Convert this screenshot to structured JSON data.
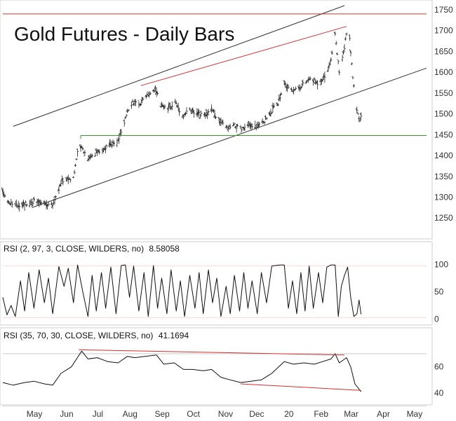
{
  "chart_data": [
    {
      "type": "ohlc",
      "panel": "price",
      "title": "Gold Futures - Daily Bars",
      "ylim": [
        1205,
        1760
      ],
      "yticks": [
        1250,
        1300,
        1350,
        1400,
        1450,
        1500,
        1550,
        1600,
        1650,
        1700,
        1750
      ],
      "xticks": [
        {
          "date": "2019-05-01",
          "label": "May"
        },
        {
          "date": "2019-06-01",
          "label": "Jun"
        },
        {
          "date": "2019-07-01",
          "label": "Jul"
        },
        {
          "date": "2019-08-01",
          "label": "Aug"
        },
        {
          "date": "2019-09-01",
          "label": "Sep"
        },
        {
          "date": "2019-10-01",
          "label": "Oct"
        },
        {
          "date": "2019-11-01",
          "label": "Nov"
        },
        {
          "date": "2019-12-01",
          "label": "Dec"
        },
        {
          "date": "2020-01-01",
          "label": "20"
        },
        {
          "date": "2020-02-01",
          "label": "Feb"
        },
        {
          "date": "2020-03-01",
          "label": "Mar"
        },
        {
          "date": "2020-04-01",
          "label": "Apr"
        },
        {
          "date": "2020-05-01",
          "label": "May"
        }
      ],
      "xlim": [
        "2019-04-10",
        "2020-05-22"
      ],
      "grid": false,
      "closes": [
        {
          "x": "2019-04-10",
          "y": 1312
        },
        {
          "x": "2019-04-16",
          "y": 1288
        },
        {
          "x": "2019-04-22",
          "y": 1280
        },
        {
          "x": "2019-05-01",
          "y": 1285
        },
        {
          "x": "2019-05-10",
          "y": 1290
        },
        {
          "x": "2019-05-20",
          "y": 1283
        },
        {
          "x": "2019-05-28",
          "y": 1282
        },
        {
          "x": "2019-06-03",
          "y": 1320
        },
        {
          "x": "2019-06-06",
          "y": 1340
        },
        {
          "x": "2019-06-12",
          "y": 1345
        },
        {
          "x": "2019-06-17",
          "y": 1348
        },
        {
          "x": "2019-06-21",
          "y": 1405
        },
        {
          "x": "2019-06-25",
          "y": 1420
        },
        {
          "x": "2019-07-01",
          "y": 1395
        },
        {
          "x": "2019-07-08",
          "y": 1405
        },
        {
          "x": "2019-07-15",
          "y": 1415
        },
        {
          "x": "2019-07-22",
          "y": 1425
        },
        {
          "x": "2019-07-29",
          "y": 1430
        },
        {
          "x": "2019-08-05",
          "y": 1475
        },
        {
          "x": "2019-08-08",
          "y": 1510
        },
        {
          "x": "2019-08-13",
          "y": 1530
        },
        {
          "x": "2019-08-19",
          "y": 1520
        },
        {
          "x": "2019-08-26",
          "y": 1545
        },
        {
          "x": "2019-09-04",
          "y": 1560
        },
        {
          "x": "2019-09-09",
          "y": 1520
        },
        {
          "x": "2019-09-16",
          "y": 1510
        },
        {
          "x": "2019-09-23",
          "y": 1530
        },
        {
          "x": "2019-09-30",
          "y": 1495
        },
        {
          "x": "2019-10-07",
          "y": 1510
        },
        {
          "x": "2019-10-14",
          "y": 1500
        },
        {
          "x": "2019-10-21",
          "y": 1495
        },
        {
          "x": "2019-10-28",
          "y": 1510
        },
        {
          "x": "2019-11-04",
          "y": 1485
        },
        {
          "x": "2019-11-12",
          "y": 1465
        },
        {
          "x": "2019-11-19",
          "y": 1472
        },
        {
          "x": "2019-11-26",
          "y": 1462
        },
        {
          "x": "2019-12-03",
          "y": 1472
        },
        {
          "x": "2019-12-10",
          "y": 1470
        },
        {
          "x": "2019-12-17",
          "y": 1480
        },
        {
          "x": "2019-12-24",
          "y": 1505
        },
        {
          "x": "2019-12-31",
          "y": 1525
        },
        {
          "x": "2020-01-06",
          "y": 1575
        },
        {
          "x": "2020-01-10",
          "y": 1560
        },
        {
          "x": "2020-01-17",
          "y": 1560
        },
        {
          "x": "2020-01-24",
          "y": 1570
        },
        {
          "x": "2020-01-31",
          "y": 1585
        },
        {
          "x": "2020-02-07",
          "y": 1575
        },
        {
          "x": "2020-02-14",
          "y": 1590
        },
        {
          "x": "2020-02-20",
          "y": 1625
        },
        {
          "x": "2020-02-24",
          "y": 1690
        },
        {
          "x": "2020-02-28",
          "y": 1600
        },
        {
          "x": "2020-03-03",
          "y": 1645
        },
        {
          "x": "2020-03-06",
          "y": 1690
        },
        {
          "x": "2020-03-09",
          "y": 1680
        },
        {
          "x": "2020-03-12",
          "y": 1590
        },
        {
          "x": "2020-03-16",
          "y": 1510
        },
        {
          "x": "2020-03-19",
          "y": 1480
        },
        {
          "x": "2020-03-20",
          "y": 1492
        }
      ],
      "lines": [
        {
          "color": "#333333",
          "points": [
            {
              "x": "2019-04-20",
              "y": 1470
            },
            {
              "x": "2020-03-04",
              "y": 1760
            }
          ]
        },
        {
          "color": "#333333",
          "points": [
            {
              "x": "2019-05-08",
              "y": 1275
            },
            {
              "x": "2020-05-22",
              "y": 1610
            }
          ]
        },
        {
          "color": "#d03030",
          "points": [
            {
              "x": "2019-08-21",
              "y": 1568
            },
            {
              "x": "2020-03-06",
              "y": 1710
            }
          ]
        },
        {
          "color": "#d03030",
          "points": [
            {
              "x": "2019-04-10",
              "y": 1740
            },
            {
              "x": "2020-05-22",
              "y": 1740
            }
          ]
        },
        {
          "color": "#339933",
          "points": [
            {
              "x": "2019-06-24",
              "y": 1448
            },
            {
              "x": "2020-05-22",
              "y": 1448
            }
          ]
        },
        {
          "color": "#339933",
          "points": [
            {
              "x": "2019-06-24",
              "y": 1448
            },
            {
              "x": "2019-06-24",
              "y": 1440
            }
          ]
        }
      ]
    },
    {
      "type": "line",
      "panel": "rsi-fast",
      "header": "RSI (2, 97, 3, CLOSE, WILDERS, no)",
      "value_label": "8.58058",
      "ylim": [
        -8,
        112
      ],
      "yticks": [
        0,
        50,
        100
      ],
      "levels": [
        {
          "y": 97,
          "color": "#ff9999"
        },
        {
          "y": 3,
          "color": "#ff9999"
        }
      ],
      "values": [
        {
          "x": "2019-04-10",
          "y": 40
        },
        {
          "x": "2019-04-14",
          "y": 8
        },
        {
          "x": "2019-04-18",
          "y": 25
        },
        {
          "x": "2019-04-22",
          "y": 5
        },
        {
          "x": "2019-04-27",
          "y": 70
        },
        {
          "x": "2019-05-01",
          "y": 15
        },
        {
          "x": "2019-05-05",
          "y": 85
        },
        {
          "x": "2019-05-10",
          "y": 20
        },
        {
          "x": "2019-05-15",
          "y": 90
        },
        {
          "x": "2019-05-20",
          "y": 30
        },
        {
          "x": "2019-05-24",
          "y": 75
        },
        {
          "x": "2019-05-28",
          "y": 10
        },
        {
          "x": "2019-06-03",
          "y": 96
        },
        {
          "x": "2019-06-08",
          "y": 60
        },
        {
          "x": "2019-06-12",
          "y": 93
        },
        {
          "x": "2019-06-17",
          "y": 30
        },
        {
          "x": "2019-06-21",
          "y": 99
        },
        {
          "x": "2019-06-26",
          "y": 50
        },
        {
          "x": "2019-07-01",
          "y": 5
        },
        {
          "x": "2019-07-05",
          "y": 80
        },
        {
          "x": "2019-07-09",
          "y": 15
        },
        {
          "x": "2019-07-14",
          "y": 85
        },
        {
          "x": "2019-07-18",
          "y": 20
        },
        {
          "x": "2019-07-23",
          "y": 95
        },
        {
          "x": "2019-07-28",
          "y": 10
        },
        {
          "x": "2019-08-02",
          "y": 98
        },
        {
          "x": "2019-08-06",
          "y": 99
        },
        {
          "x": "2019-08-10",
          "y": 40
        },
        {
          "x": "2019-08-14",
          "y": 97
        },
        {
          "x": "2019-08-19",
          "y": 15
        },
        {
          "x": "2019-08-24",
          "y": 85
        },
        {
          "x": "2019-08-28",
          "y": 5
        },
        {
          "x": "2019-09-02",
          "y": 98
        },
        {
          "x": "2019-09-06",
          "y": 20
        },
        {
          "x": "2019-09-10",
          "y": 75
        },
        {
          "x": "2019-09-15",
          "y": 10
        },
        {
          "x": "2019-09-19",
          "y": 90
        },
        {
          "x": "2019-09-24",
          "y": 15
        },
        {
          "x": "2019-09-28",
          "y": 70
        },
        {
          "x": "2019-10-02",
          "y": 5
        },
        {
          "x": "2019-10-07",
          "y": 80
        },
        {
          "x": "2019-10-12",
          "y": 20
        },
        {
          "x": "2019-10-16",
          "y": 85
        },
        {
          "x": "2019-10-20",
          "y": 10
        },
        {
          "x": "2019-10-25",
          "y": 90
        },
        {
          "x": "2019-10-29",
          "y": 30
        },
        {
          "x": "2019-11-02",
          "y": 75
        },
        {
          "x": "2019-11-06",
          "y": 5
        },
        {
          "x": "2019-11-11",
          "y": 60
        },
        {
          "x": "2019-11-15",
          "y": 10
        },
        {
          "x": "2019-11-19",
          "y": 80
        },
        {
          "x": "2019-11-24",
          "y": 15
        },
        {
          "x": "2019-11-28",
          "y": 85
        },
        {
          "x": "2019-12-02",
          "y": 20
        },
        {
          "x": "2019-12-06",
          "y": 70
        },
        {
          "x": "2019-12-11",
          "y": 10
        },
        {
          "x": "2019-12-15",
          "y": 85
        },
        {
          "x": "2019-12-20",
          "y": 30
        },
        {
          "x": "2019-12-25",
          "y": 97
        },
        {
          "x": "2020-01-02",
          "y": 99
        },
        {
          "x": "2020-01-06",
          "y": 99
        },
        {
          "x": "2020-01-10",
          "y": 20
        },
        {
          "x": "2020-01-14",
          "y": 70
        },
        {
          "x": "2020-01-18",
          "y": 10
        },
        {
          "x": "2020-01-22",
          "y": 85
        },
        {
          "x": "2020-01-26",
          "y": 15
        },
        {
          "x": "2020-01-30",
          "y": 97
        },
        {
          "x": "2020-02-03",
          "y": 20
        },
        {
          "x": "2020-02-08",
          "y": 85
        },
        {
          "x": "2020-02-12",
          "y": 30
        },
        {
          "x": "2020-02-16",
          "y": 95
        },
        {
          "x": "2020-02-20",
          "y": 99
        },
        {
          "x": "2020-02-24",
          "y": 99
        },
        {
          "x": "2020-02-27",
          "y": 5
        },
        {
          "x": "2020-03-01",
          "y": 60
        },
        {
          "x": "2020-03-04",
          "y": 80
        },
        {
          "x": "2020-03-07",
          "y": 95
        },
        {
          "x": "2020-03-10",
          "y": 40
        },
        {
          "x": "2020-03-13",
          "y": 5
        },
        {
          "x": "2020-03-16",
          "y": 10
        },
        {
          "x": "2020-03-18",
          "y": 35
        },
        {
          "x": "2020-03-20",
          "y": 9
        }
      ]
    },
    {
      "type": "line",
      "panel": "rsi-slow",
      "header": "RSI (35, 70, 30, CLOSE, WILDERS, no)",
      "value_label": "41.1694",
      "ylim": [
        32,
        78
      ],
      "yticks": [
        40,
        60
      ],
      "levels": [
        {
          "y": 70,
          "color": "#888888"
        },
        {
          "y": 30,
          "color": "#888888"
        }
      ],
      "values": [
        {
          "x": "2019-04-10",
          "y": 48
        },
        {
          "x": "2019-04-20",
          "y": 46
        },
        {
          "x": "2019-05-01",
          "y": 48
        },
        {
          "x": "2019-05-10",
          "y": 49
        },
        {
          "x": "2019-05-20",
          "y": 47
        },
        {
          "x": "2019-05-28",
          "y": 46
        },
        {
          "x": "2019-06-05",
          "y": 55
        },
        {
          "x": "2019-06-15",
          "y": 60
        },
        {
          "x": "2019-06-25",
          "y": 72
        },
        {
          "x": "2019-07-01",
          "y": 66
        },
        {
          "x": "2019-07-10",
          "y": 67
        },
        {
          "x": "2019-07-20",
          "y": 64
        },
        {
          "x": "2019-07-30",
          "y": 63
        },
        {
          "x": "2019-08-08",
          "y": 68
        },
        {
          "x": "2019-08-15",
          "y": 67
        },
        {
          "x": "2019-08-25",
          "y": 68
        },
        {
          "x": "2019-09-05",
          "y": 69
        },
        {
          "x": "2019-09-12",
          "y": 62
        },
        {
          "x": "2019-09-22",
          "y": 63
        },
        {
          "x": "2019-10-01",
          "y": 58
        },
        {
          "x": "2019-10-10",
          "y": 58
        },
        {
          "x": "2019-10-20",
          "y": 57
        },
        {
          "x": "2019-10-28",
          "y": 58
        },
        {
          "x": "2019-11-06",
          "y": 52
        },
        {
          "x": "2019-11-15",
          "y": 50
        },
        {
          "x": "2019-11-25",
          "y": 48
        },
        {
          "x": "2019-12-05",
          "y": 49
        },
        {
          "x": "2019-12-15",
          "y": 50
        },
        {
          "x": "2019-12-25",
          "y": 55
        },
        {
          "x": "2020-01-06",
          "y": 64
        },
        {
          "x": "2020-01-15",
          "y": 62
        },
        {
          "x": "2020-01-25",
          "y": 63
        },
        {
          "x": "2020-02-04",
          "y": 62
        },
        {
          "x": "2020-02-12",
          "y": 64
        },
        {
          "x": "2020-02-20",
          "y": 66
        },
        {
          "x": "2020-02-24",
          "y": 70
        },
        {
          "x": "2020-02-28",
          "y": 63
        },
        {
          "x": "2020-03-06",
          "y": 67
        },
        {
          "x": "2020-03-10",
          "y": 60
        },
        {
          "x": "2020-03-14",
          "y": 47
        },
        {
          "x": "2020-03-18",
          "y": 43
        },
        {
          "x": "2020-03-20",
          "y": 41
        }
      ],
      "lines": [
        {
          "color": "#d03030",
          "points": [
            {
              "x": "2019-06-22",
              "y": 73
            },
            {
              "x": "2020-03-04",
              "y": 69
            }
          ]
        },
        {
          "color": "#d03030",
          "points": [
            {
              "x": "2019-11-25",
              "y": 47
            },
            {
              "x": "2020-03-20",
              "y": 42
            }
          ]
        }
      ]
    }
  ]
}
